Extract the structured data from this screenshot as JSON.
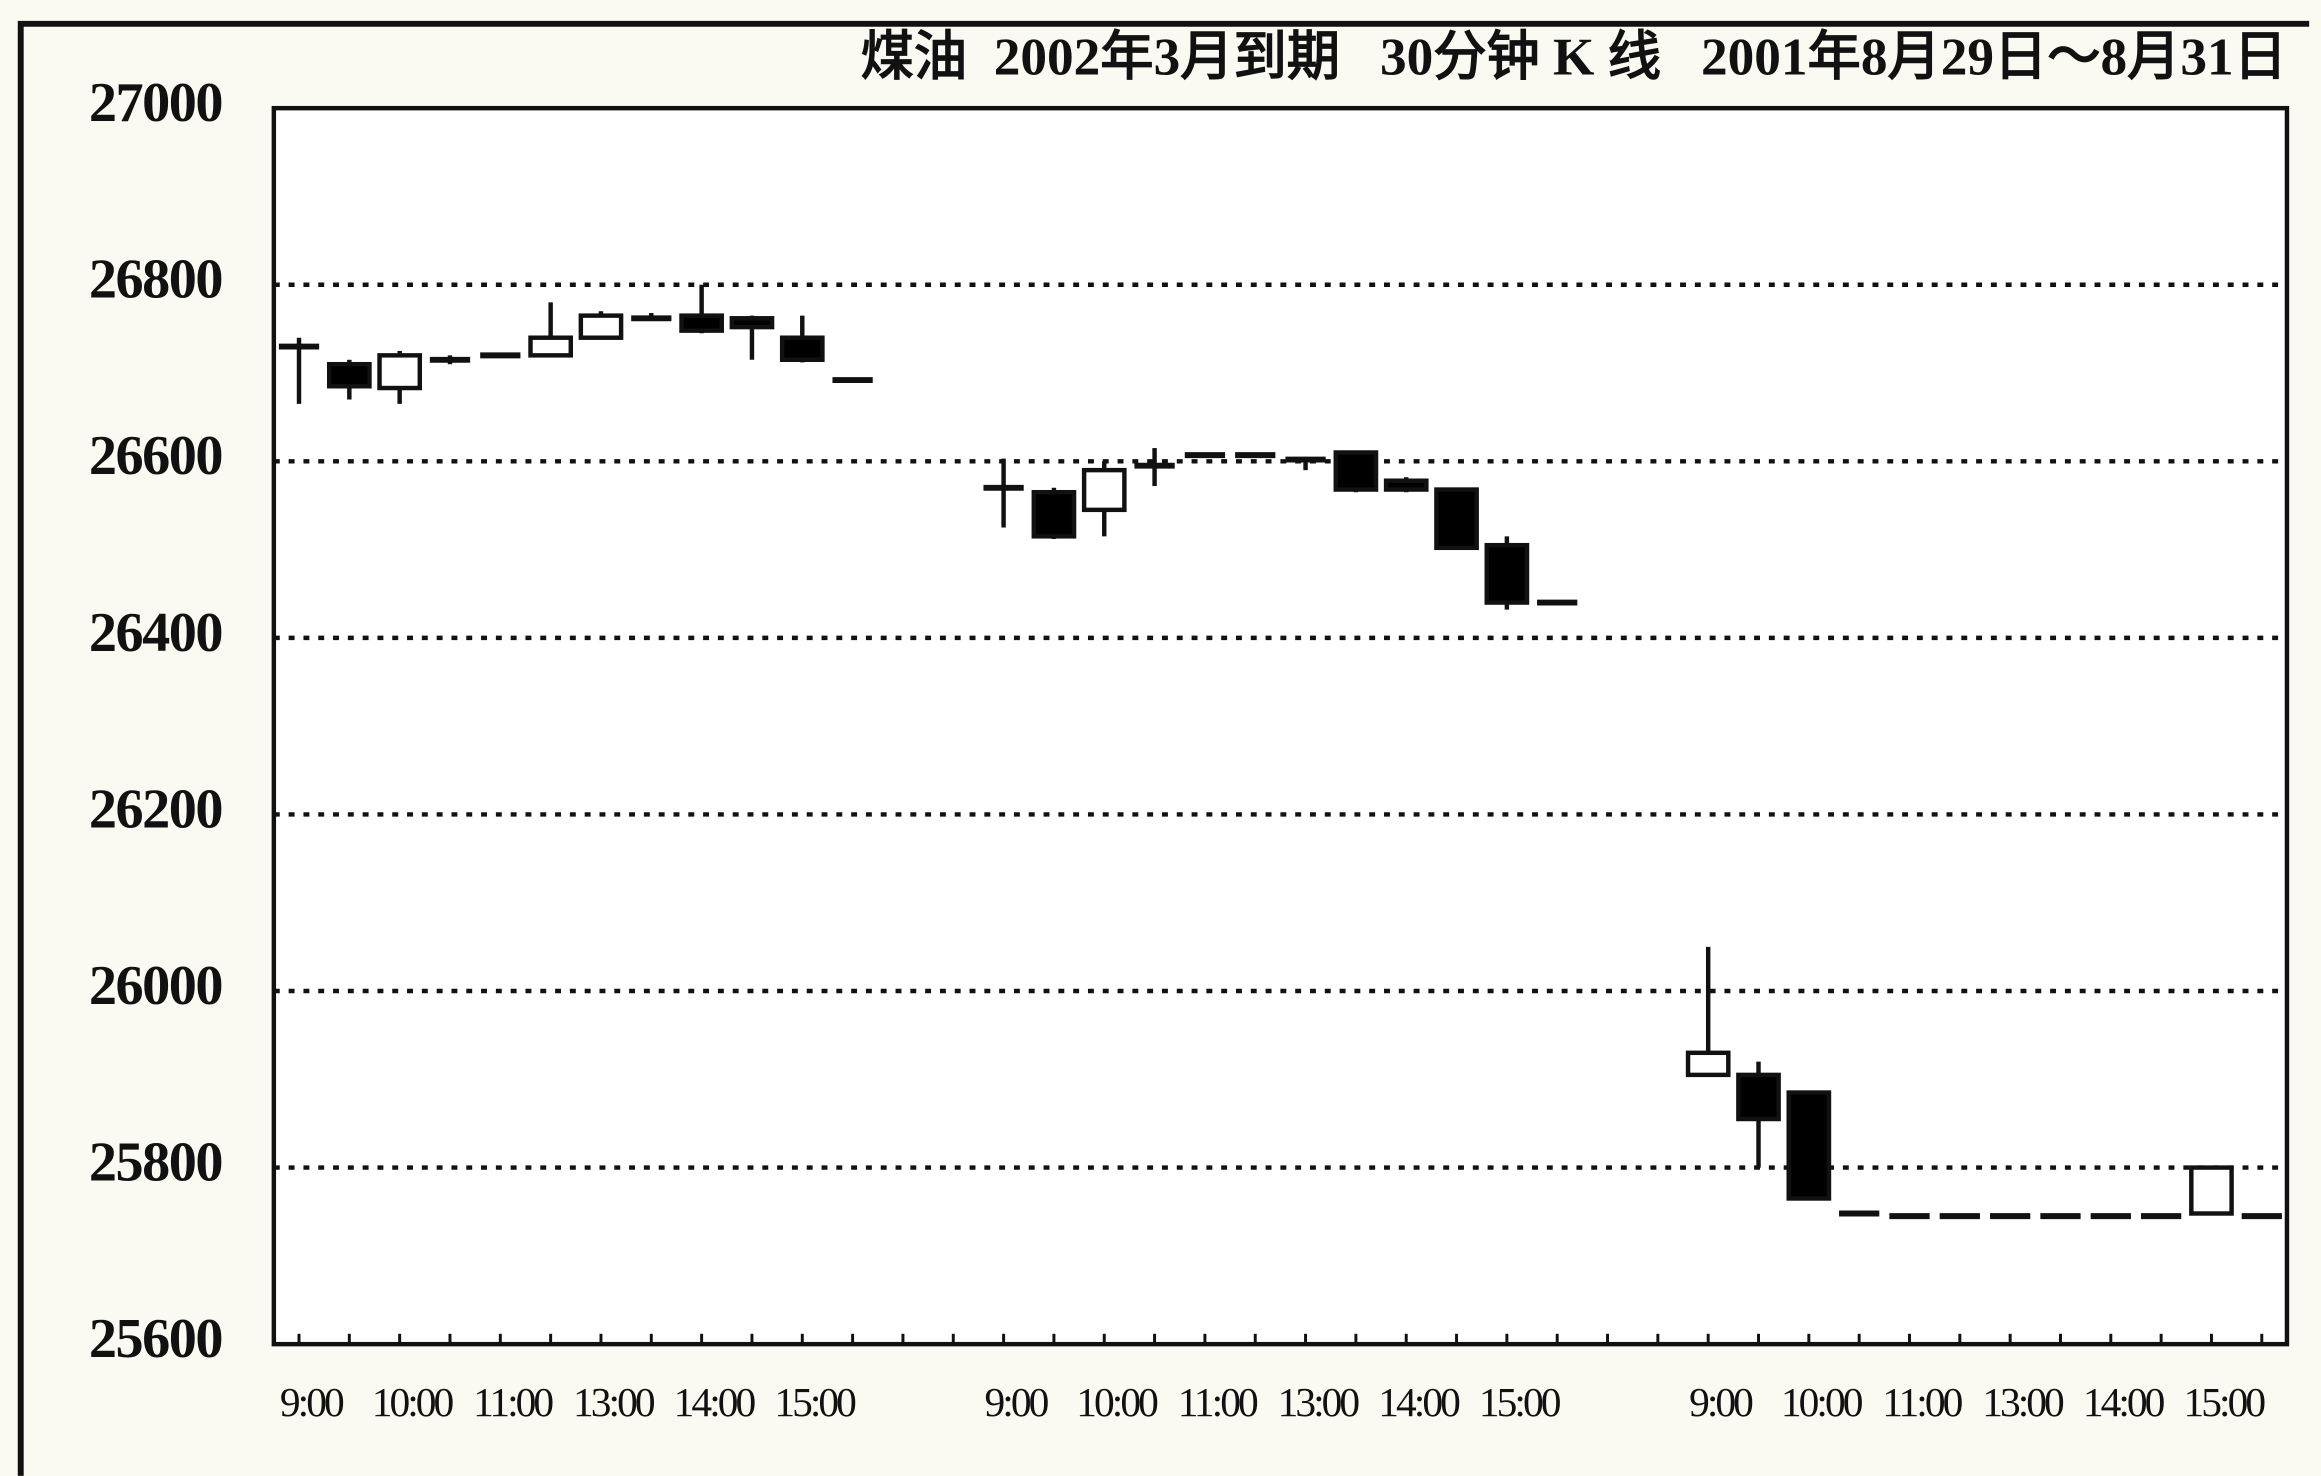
{
  "chart_data": {
    "type": "candlestick",
    "title": "煤油  2002年3月到期   30分钟 K 线   2001年8月29日～8月31日",
    "categories": [
      "9:00",
      null,
      "10:00",
      null,
      "11:00",
      null,
      "13:00",
      null,
      "14:00",
      null,
      "15:00",
      null,
      null,
      null,
      "9:00",
      null,
      "10:00",
      null,
      "11:00",
      null,
      "13:00",
      null,
      "14:00",
      null,
      "15:00",
      null,
      null,
      null,
      "9:00",
      null,
      "10:00",
      null,
      "11:00",
      null,
      "13:00",
      null,
      "14:00",
      null,
      "15:00",
      null
    ],
    "open": [
      26730,
      26710,
      26683,
      26715,
      26720,
      26720,
      26740,
      26762,
      26765,
      26762,
      26740,
      26692,
      null,
      null,
      26570,
      26565,
      26545,
      26595,
      26607,
      26607,
      26602,
      26610,
      26578,
      26568,
      26505,
      26440,
      null,
      null,
      25905,
      25905,
      25885,
      25748,
      25745,
      25745,
      25745,
      25745,
      25745,
      25745,
      25748,
      25745
    ],
    "high": [
      26740,
      26715,
      26725,
      26720,
      26720,
      26780,
      26770,
      26768,
      26800,
      26765,
      26765,
      26692,
      null,
      null,
      26603,
      26570,
      26600,
      26615,
      26607,
      26607,
      26605,
      26612,
      26582,
      26570,
      26515,
      26440,
      null,
      null,
      26050,
      25920,
      25885,
      25748,
      25745,
      25745,
      25745,
      25745,
      25745,
      25745,
      25800,
      25745
    ],
    "low": [
      26665,
      26670,
      26665,
      26710,
      26720,
      26720,
      26740,
      26760,
      26745,
      26715,
      26712,
      26692,
      null,
      null,
      26525,
      26512,
      26515,
      26572,
      26607,
      26607,
      26590,
      26565,
      26565,
      26500,
      26432,
      26440,
      null,
      null,
      25905,
      25800,
      25765,
      25748,
      25745,
      25745,
      25745,
      25745,
      25745,
      25745,
      25748,
      25745
    ],
    "close": [
      26730,
      26685,
      26720,
      26715,
      26720,
      26740,
      26765,
      26762,
      26748,
      26752,
      26715,
      26692,
      null,
      null,
      26570,
      26515,
      26590,
      26595,
      26607,
      26607,
      26602,
      26568,
      26568,
      26502,
      26440,
      26440,
      null,
      null,
      25930,
      25855,
      25765,
      25748,
      25745,
      25745,
      25745,
      25745,
      25745,
      25745,
      25800,
      25745
    ],
    "up_color": "#ffffff",
    "down_color": "#000000",
    "ylim": [
      25600,
      27000
    ],
    "yticks": [
      25600,
      25800,
      26000,
      26200,
      26400,
      26600,
      26800,
      27000
    ],
    "grid": true
  }
}
